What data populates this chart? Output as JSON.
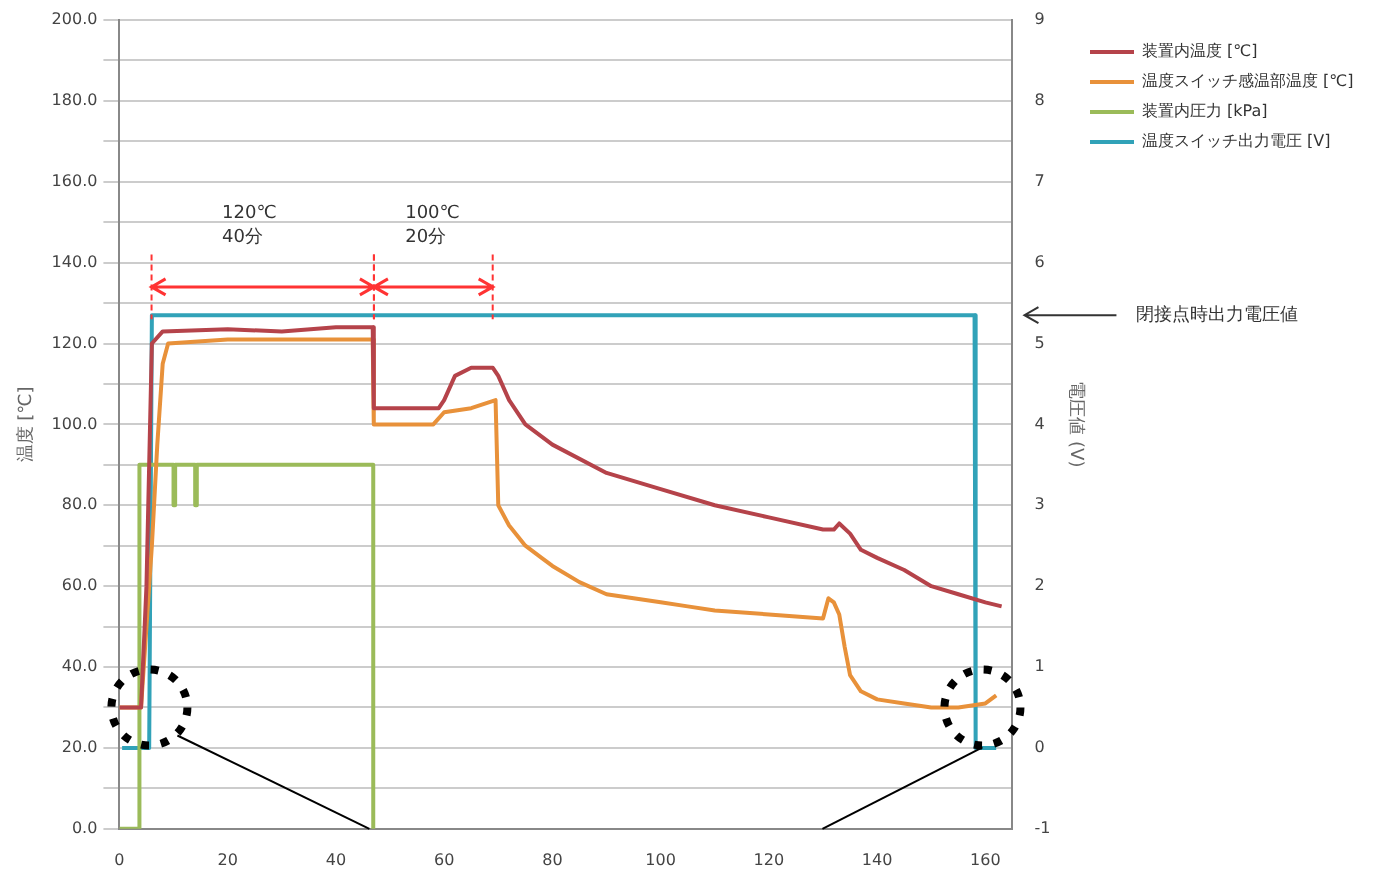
{
  "chart_data": {
    "type": "line",
    "ylabel": "温度 [℃]",
    "y2label": "電圧値 (V)",
    "xlim": [
      0,
      165
    ],
    "xticks": [
      0,
      20,
      40,
      60,
      80,
      100,
      120,
      140,
      160
    ],
    "ylim": [
      0,
      200
    ],
    "yticks": [
      {
        "value": 0,
        "label": "0.0"
      },
      {
        "value": 10,
        "label": null
      },
      {
        "value": 20,
        "label": "20.0"
      },
      {
        "value": 30,
        "label": null
      },
      {
        "value": 40,
        "label": "40.0"
      },
      {
        "value": 50,
        "label": null
      },
      {
        "value": 60,
        "label": "60.0"
      },
      {
        "value": 70,
        "label": null
      },
      {
        "value": 80,
        "label": "80.0"
      },
      {
        "value": 90,
        "label": null
      },
      {
        "value": 100,
        "label": "100.0"
      },
      {
        "value": 110,
        "label": null
      },
      {
        "value": 120,
        "label": "120.0"
      },
      {
        "value": 130,
        "label": null
      },
      {
        "value": 140,
        "label": "140.0"
      },
      {
        "value": 150,
        "label": null
      },
      {
        "value": 160,
        "label": "160.0"
      },
      {
        "value": 170,
        "label": null
      },
      {
        "value": 180,
        "label": "180.0"
      },
      {
        "value": 190,
        "label": null
      },
      {
        "value": 200,
        "label": "200.0"
      }
    ],
    "y2lim": [
      -1,
      9
    ],
    "y2ticks": [
      -1,
      0,
      1,
      2,
      3,
      4,
      5,
      6,
      7,
      8,
      9
    ],
    "grid": "y",
    "legend": "top right",
    "marker": "none",
    "series": [
      {
        "name": "装置内温度 [℃]",
        "color": "#b5434a",
        "x": [
          0,
          4,
          5,
          6,
          8,
          20,
          30,
          40,
          46.8,
          47,
          59,
          60,
          62,
          65,
          69,
          70,
          72,
          75,
          80,
          90,
          100,
          110,
          120,
          130,
          132,
          133,
          135,
          137,
          140,
          145,
          150,
          155,
          160,
          163
        ],
        "values": [
          30,
          30,
          60,
          120,
          123,
          123.5,
          123,
          124,
          124,
          104,
          104,
          106,
          112,
          114,
          114,
          112,
          106,
          100,
          95,
          88,
          84,
          80,
          77,
          74,
          74,
          75.5,
          73,
          69,
          67,
          64,
          60,
          58,
          56,
          55
        ]
      },
      {
        "name": "温度スイッチ感温部温度 [℃]",
        "color": "#e8913a",
        "x": [
          0,
          4,
          5,
          6,
          7,
          8,
          9,
          20,
          30,
          46.8,
          47,
          58,
          60,
          65,
          69.5,
          70,
          72,
          75,
          78,
          80,
          85,
          90,
          95,
          100,
          105,
          110,
          120,
          130,
          131,
          132,
          133,
          134,
          135,
          137,
          140,
          145,
          150,
          155,
          160,
          162
        ],
        "values": [
          30,
          30,
          50,
          70,
          95,
          115,
          120,
          121,
          121,
          121,
          100,
          100,
          103,
          104,
          106,
          80,
          75,
          70,
          67,
          65,
          61,
          58,
          57,
          56,
          55,
          54,
          53,
          52,
          57,
          56,
          53,
          45,
          38,
          34,
          32,
          31,
          30,
          30,
          31,
          33
        ]
      },
      {
        "name": "装置内圧力 [kPa]",
        "color": "#9bbb59",
        "x": [
          0,
          3.7,
          3.7,
          10,
          10,
          10.3,
          10.3,
          14,
          14,
          14.3,
          14.3,
          46.9,
          46.9
        ],
        "values": [
          0,
          0,
          90,
          90,
          80,
          80,
          90,
          90,
          80,
          80,
          90,
          90,
          0
        ]
      },
      {
        "name": "温度スイッチ出力電圧 [V]",
        "color": "#31a2b8",
        "axis": "y2",
        "x": [
          0.5,
          5.5,
          6,
          158,
          158.2,
          162
        ],
        "values": [
          0,
          0,
          5.35,
          5.35,
          0,
          0
        ]
      }
    ],
    "annotations": [
      "120℃\n40分",
      "100℃\n20分",
      "閉接点時出力電圧値"
    ]
  }
}
